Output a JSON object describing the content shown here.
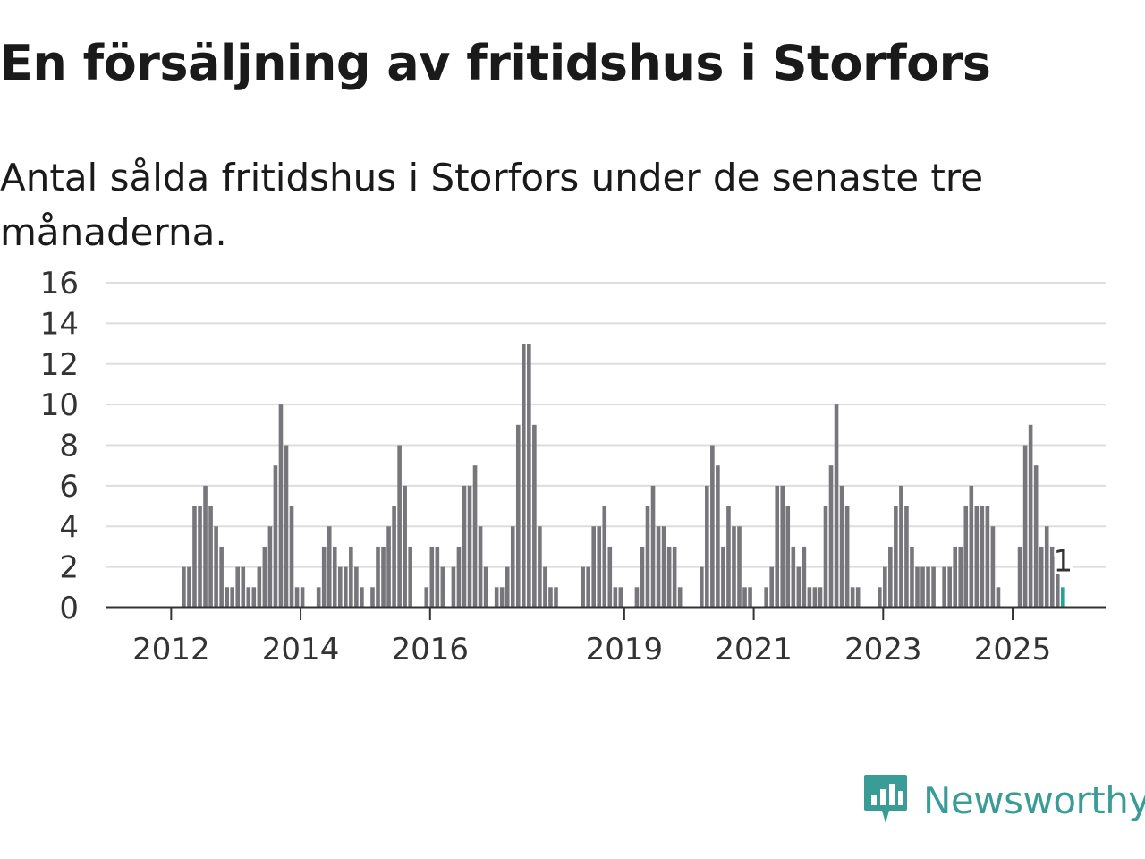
{
  "title": "En försäljning av fritidshus i Storfors",
  "subtitle": "Antal sålda fritidshus i Storfors under de senaste tre månaderna.",
  "brand": {
    "name": "Newsworthy",
    "color": "#3a9c97",
    "icon": "newsworthy-logo-icon"
  },
  "colors": {
    "bar": "#76767b",
    "highlight": "#26a29a",
    "grid": "#dddddd",
    "axis": "#333333"
  },
  "chart_data": {
    "type": "bar",
    "title": "En försäljning av fritidshus i Storfors",
    "xlabel": "",
    "ylabel": "",
    "ylim": [
      0,
      16
    ],
    "yticks": [
      0,
      2,
      4,
      6,
      8,
      10,
      12,
      14,
      16
    ],
    "grid": true,
    "start_year": 2011,
    "start_month": 1,
    "xtick_labels": [
      "2012",
      "2014",
      "2016",
      "2019",
      "2021",
      "2023",
      "2025"
    ],
    "values": [
      0,
      0,
      0,
      0,
      0,
      0,
      0,
      0,
      0,
      0,
      0,
      0,
      0,
      0,
      2,
      2,
      5,
      5,
      6,
      5,
      4,
      3,
      1,
      1,
      2,
      2,
      1,
      1,
      2,
      3,
      4,
      7,
      10,
      8,
      5,
      1,
      1,
      0,
      0,
      1,
      3,
      4,
      3,
      2,
      2,
      3,
      2,
      1,
      0,
      1,
      3,
      3,
      4,
      5,
      8,
      6,
      3,
      0,
      0,
      1,
      3,
      3,
      2,
      0,
      2,
      3,
      6,
      6,
      7,
      4,
      2,
      0,
      1,
      1,
      2,
      4,
      9,
      13,
      13,
      9,
      4,
      2,
      1,
      1,
      0,
      0,
      0,
      0,
      2,
      2,
      4,
      4,
      5,
      3,
      1,
      1,
      0,
      0,
      1,
      3,
      5,
      6,
      4,
      4,
      3,
      3,
      1,
      0,
      0,
      0,
      2,
      6,
      8,
      7,
      3,
      5,
      4,
      4,
      1,
      1,
      0,
      0,
      1,
      2,
      6,
      6,
      5,
      3,
      2,
      3,
      1,
      1,
      1,
      5,
      7,
      10,
      6,
      5,
      1,
      1,
      0,
      0,
      0,
      1,
      2,
      3,
      5,
      6,
      5,
      3,
      2,
      2,
      2,
      2,
      0,
      2,
      2,
      3,
      3,
      5,
      6,
      5,
      5,
      5,
      4,
      1,
      0,
      0,
      0,
      3,
      8,
      9,
      7,
      3,
      4,
      3,
      2,
      1
    ],
    "highlight_index": 177,
    "annotation": {
      "index": 177,
      "text": "1"
    }
  }
}
